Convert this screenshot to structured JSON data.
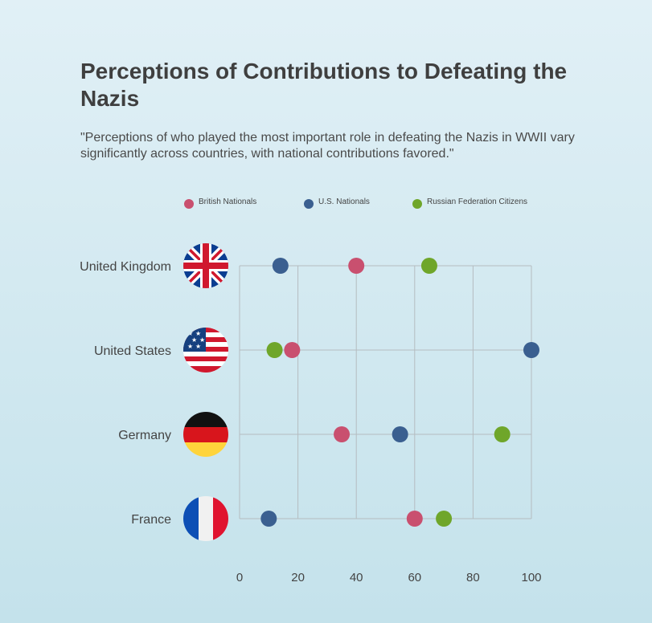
{
  "title": "Perceptions of Contributions to Defeating the Nazis",
  "subtitle": "\"Perceptions of who played the most important role in defeating the Nazis in WWII vary significantly across countries, with national contributions favored.\"",
  "colors": {
    "british": "#c9506f",
    "us": "#3a5f90",
    "russian": "#6fa62a",
    "grid": "#b5bcc0",
    "text": "#444444"
  },
  "chart_data": {
    "type": "scatter",
    "categories": [
      "United Kingdom",
      "United States",
      "Germany",
      "France"
    ],
    "flags": [
      "uk-flag",
      "us-flag",
      "germany-flag",
      "france-flag"
    ],
    "xlim": [
      0,
      100
    ],
    "x_ticks": [
      0,
      20,
      40,
      60,
      80,
      100
    ],
    "legend_position": "top",
    "grid": true,
    "series": [
      {
        "name": "British Nationals",
        "color": "#c9506f",
        "values": [
          40,
          18,
          35,
          60
        ]
      },
      {
        "name": "U.S. Nationals",
        "color": "#3a5f90",
        "values": [
          14,
          100,
          55,
          10
        ]
      },
      {
        "name": "Russian Federation Citizens",
        "color": "#6fa62a",
        "values": [
          65,
          12,
          90,
          70
        ]
      }
    ]
  }
}
